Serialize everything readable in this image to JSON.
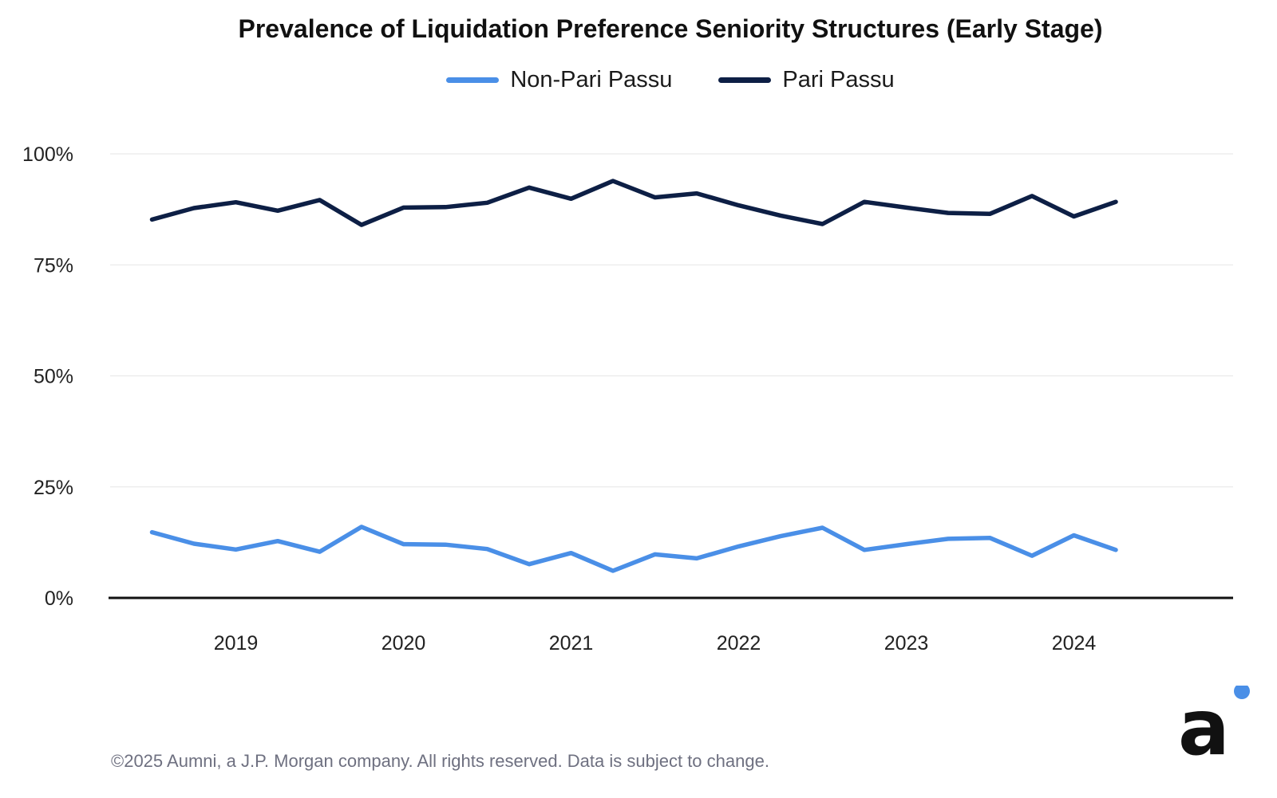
{
  "title": "Prevalence of Liquidation Preference Seniority Structures (Early Stage)",
  "footer": "©2025 Aumni, a J.P. Morgan company. All rights reserved. Data is subject to change.",
  "colors": {
    "non_pari_passu": "#4a8fe7",
    "pari_passu": "#0d1f45",
    "grid": "#e6e6e6",
    "axis": "#111111",
    "logo_dot": "#4a8fe7",
    "logo": "#111111"
  },
  "logo": {
    "letter": "a"
  },
  "chart_data": {
    "type": "line",
    "title": "Prevalence of Liquidation Preference Seniority Structures (Early Stage)",
    "xlabel": "",
    "ylabel": "",
    "ylim": [
      0,
      100
    ],
    "yticks": [
      0,
      25,
      50,
      75,
      100
    ],
    "ytick_labels": [
      "0%",
      "25%",
      "50%",
      "75%",
      "100%"
    ],
    "xlim": [
      2018.25,
      2024.95
    ],
    "xticks": [
      2019,
      2020,
      2021,
      2022,
      2023,
      2024
    ],
    "xtick_labels": [
      "2019",
      "2020",
      "2021",
      "2022",
      "2023",
      "2024"
    ],
    "x": [
      2018.5,
      2018.75,
      2019.0,
      2019.25,
      2019.5,
      2019.75,
      2020.0,
      2020.25,
      2020.5,
      2020.75,
      2021.0,
      2021.25,
      2021.5,
      2021.75,
      2022.0,
      2022.25,
      2022.5,
      2022.75,
      2023.0,
      2023.25,
      2023.5,
      2023.75,
      2024.0,
      2024.25
    ],
    "legend_position": "top-center",
    "series": [
      {
        "name": "Non-Pari Passu",
        "color": "#4a8fe7",
        "values": [
          14.8,
          12.2,
          10.9,
          12.8,
          10.4,
          16.0,
          12.1,
          12.0,
          11.0,
          7.6,
          10.1,
          6.1,
          9.8,
          8.9,
          11.6,
          13.9,
          15.8,
          10.8,
          12.1,
          13.3,
          13.5,
          9.5,
          14.1,
          10.8
        ]
      },
      {
        "name": "Pari Passu",
        "color": "#0d1f45",
        "values": [
          85.2,
          87.8,
          89.1,
          87.2,
          89.6,
          84.0,
          87.9,
          88.0,
          89.0,
          92.4,
          89.9,
          93.9,
          90.2,
          91.1,
          88.4,
          86.1,
          84.2,
          89.2,
          87.9,
          86.7,
          86.5,
          90.5,
          85.9,
          89.2
        ]
      }
    ]
  }
}
